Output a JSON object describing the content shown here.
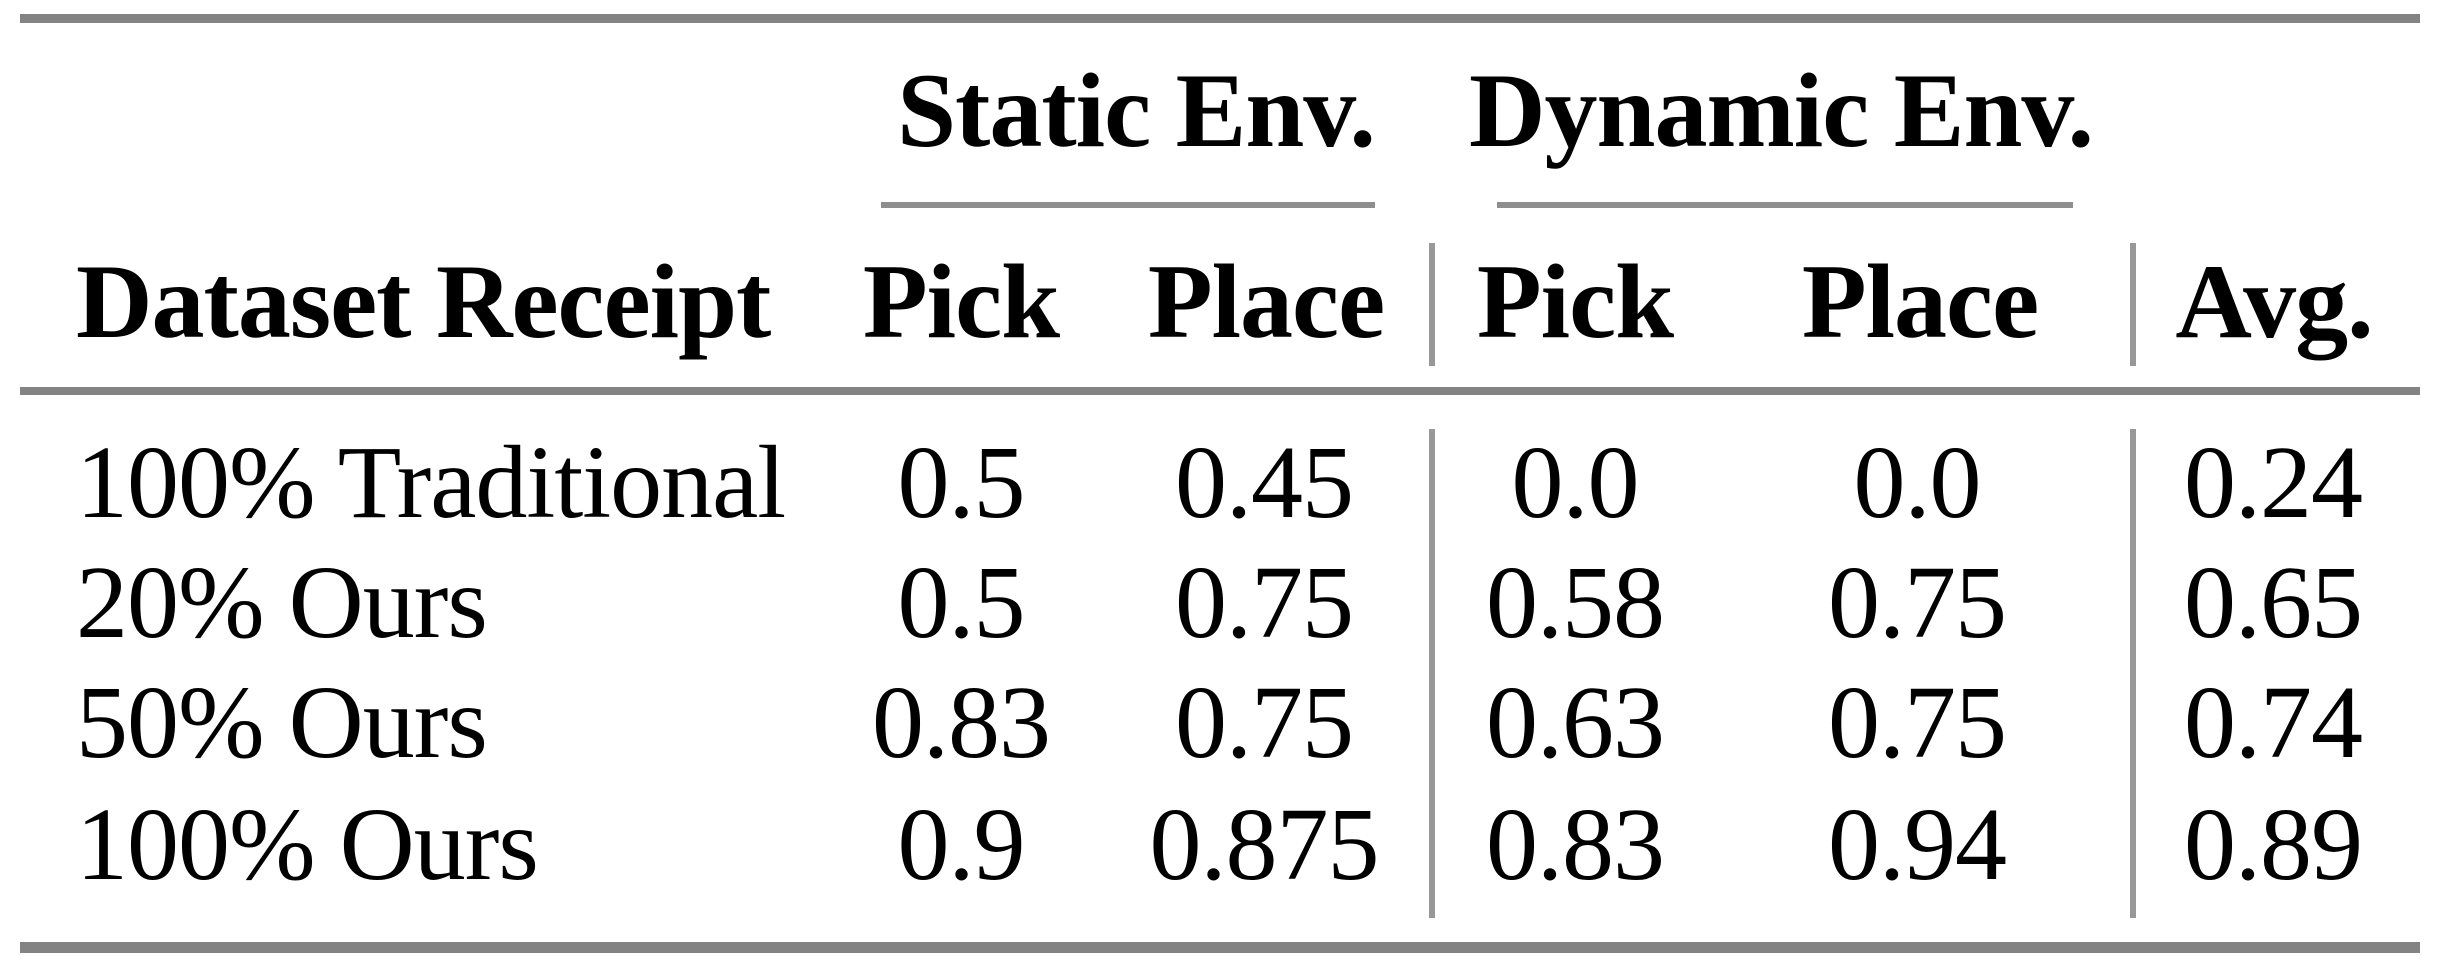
{
  "table": {
    "group_headers": [
      {
        "label": "Static Env."
      },
      {
        "label": "Dynamic Env."
      }
    ],
    "column_headers": {
      "dataset": "Dataset Receipt",
      "static_pick": "Pick",
      "static_place": "Place",
      "dynamic_pick": "Pick",
      "dynamic_place": "Place",
      "avg": "Avg."
    },
    "rows": [
      {
        "label": "100% Traditional",
        "static_pick": "0.5",
        "static_place": "0.45",
        "dynamic_pick": "0.0",
        "dynamic_place": "0.0",
        "avg": "0.24"
      },
      {
        "label": "20% Ours",
        "static_pick": "0.5",
        "static_place": "0.75",
        "dynamic_pick": "0.58",
        "dynamic_place": "0.75",
        "avg": "0.65"
      },
      {
        "label": "50% Ours",
        "static_pick": "0.83",
        "static_place": "0.75",
        "dynamic_pick": "0.63",
        "dynamic_place": "0.75",
        "avg": "0.74"
      },
      {
        "label": "100% Ours",
        "static_pick": "0.9",
        "static_place": "0.875",
        "dynamic_pick": "0.83",
        "dynamic_place": "0.94",
        "avg": "0.89"
      }
    ],
    "colors": {
      "text": "#000000",
      "heavy_rule": "#838383",
      "light_rule": "#989898",
      "background": "#ffffff"
    }
  },
  "chart_data": {
    "type": "table",
    "title": "",
    "column_groups": [
      "",
      "Static Env.",
      "Static Env.",
      "Dynamic Env.",
      "Dynamic Env.",
      ""
    ],
    "columns": [
      "Dataset Receipt",
      "Pick",
      "Place",
      "Pick",
      "Place",
      "Avg."
    ],
    "rows": [
      [
        "100% Traditional",
        0.5,
        0.45,
        0.0,
        0.0,
        0.24
      ],
      [
        "20% Ours",
        0.5,
        0.75,
        0.58,
        0.75,
        0.65
      ],
      [
        "50% Ours",
        0.83,
        0.75,
        0.63,
        0.75,
        0.74
      ],
      [
        "100% Ours",
        0.9,
        0.875,
        0.83,
        0.94,
        0.89
      ]
    ]
  }
}
